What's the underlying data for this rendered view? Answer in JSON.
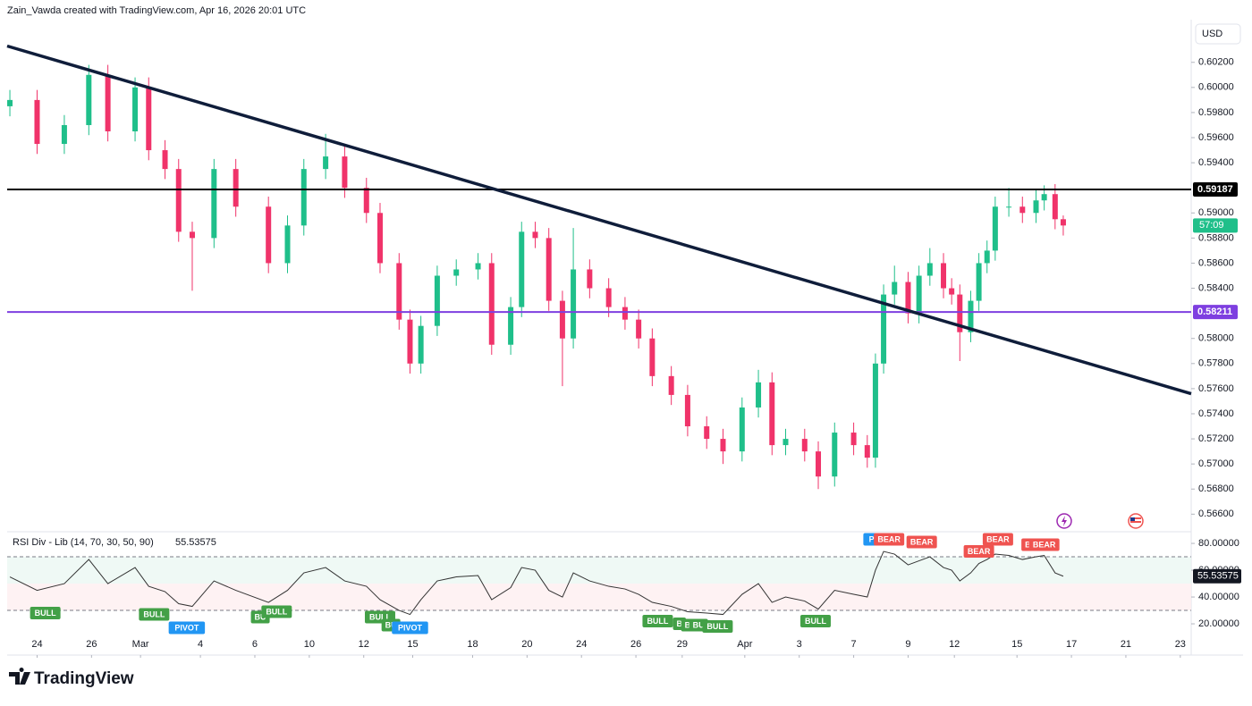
{
  "header": "Zain_Vawda created with TradingView.com, Apr 16, 2026 20:01 UTC",
  "footer": "TradingView",
  "chart_data": {
    "type": "candlestick",
    "currency": "USD",
    "up_color": "#1fbf8a",
    "down_color": "#f0336a",
    "xlim": [
      -1.1,
      42.4
    ],
    "xticks": [
      {
        "value": 0,
        "label": "24"
      },
      {
        "value": 2,
        "label": "26"
      },
      {
        "value": 3.8,
        "label": "Mar"
      },
      {
        "value": 6,
        "label": "4"
      },
      {
        "value": 8,
        "label": "6"
      },
      {
        "value": 10,
        "label": "10"
      },
      {
        "value": 12,
        "label": "12"
      },
      {
        "value": 13.8,
        "label": "15"
      },
      {
        "value": 16,
        "label": "18"
      },
      {
        "value": 18,
        "label": "20"
      },
      {
        "value": 20,
        "label": "24"
      },
      {
        "value": 22,
        "label": "26"
      },
      {
        "value": 23.7,
        "label": "29"
      },
      {
        "value": 26,
        "label": "Apr"
      },
      {
        "value": 28,
        "label": "3"
      },
      {
        "value": 30,
        "label": "7"
      },
      {
        "value": 32,
        "label": "9"
      },
      {
        "value": 33.7,
        "label": "12"
      },
      {
        "value": 36,
        "label": "15"
      },
      {
        "value": 38,
        "label": "17"
      },
      {
        "value": 40,
        "label": "21"
      },
      {
        "value": 42,
        "label": "23"
      }
    ],
    "ylim": [
      0.5646,
      0.6054
    ],
    "yticks": [
      {
        "value": 0.602,
        "label": "0.60200"
      },
      {
        "value": 0.6,
        "label": "0.60000"
      },
      {
        "value": 0.598,
        "label": "0.59800"
      },
      {
        "value": 0.596,
        "label": "0.59600"
      },
      {
        "value": 0.594,
        "label": "0.59400"
      },
      {
        "value": 0.59,
        "label": "0.59000"
      },
      {
        "value": 0.588,
        "label": "0.58800"
      },
      {
        "value": 0.586,
        "label": "0.58600"
      },
      {
        "value": 0.584,
        "label": "0.58400"
      },
      {
        "value": 0.58,
        "label": "0.58000"
      },
      {
        "value": 0.578,
        "label": "0.57800"
      },
      {
        "value": 0.576,
        "label": "0.57600"
      },
      {
        "value": 0.574,
        "label": "0.57400"
      },
      {
        "value": 0.572,
        "label": "0.57200"
      },
      {
        "value": 0.57,
        "label": "0.57000"
      },
      {
        "value": 0.568,
        "label": "0.56800"
      },
      {
        "value": 0.566,
        "label": "0.56600"
      }
    ],
    "x": [
      -1.0,
      0,
      1.0,
      1.9,
      2.6,
      3.6,
      4.1,
      4.7,
      5.2,
      5.7,
      6.5,
      7.3,
      8.5,
      9.2,
      9.8,
      10.6,
      11.3,
      12.1,
      12.6,
      13.3,
      13.7,
      14.1,
      14.7,
      15.4,
      16.2,
      16.7,
      17.4,
      17.8,
      18.3,
      18.8,
      19.3,
      19.7,
      20.3,
      21.0,
      21.6,
      22.1,
      22.6,
      23.3,
      23.9,
      24.6,
      25.2,
      25.9,
      26.5,
      27.0,
      27.5,
      28.2,
      28.7,
      29.3,
      30.0,
      30.5,
      30.8,
      31.1,
      31.5,
      32.0,
      32.4,
      32.8,
      33.3,
      33.6,
      33.9,
      34.3,
      34.6,
      34.9,
      35.2,
      35.7,
      36.2,
      36.7,
      37.0,
      37.4,
      37.7
    ],
    "open": [
      0.5985,
      0.599,
      0.5955,
      0.597,
      0.601,
      0.5965,
      0.6,
      0.595,
      0.5935,
      0.5885,
      0.588,
      0.5935,
      0.5905,
      0.586,
      0.589,
      0.5935,
      0.5945,
      0.592,
      0.59,
      0.586,
      0.5815,
      0.578,
      0.581,
      0.585,
      0.5855,
      0.586,
      0.5795,
      0.5825,
      0.5885,
      0.588,
      0.583,
      0.58,
      0.5855,
      0.584,
      0.5825,
      0.5815,
      0.58,
      0.577,
      0.5755,
      0.573,
      0.572,
      0.571,
      0.5745,
      0.5765,
      0.5715,
      0.572,
      0.571,
      0.569,
      0.5725,
      0.5715,
      0.5705,
      0.578,
      0.5835,
      0.5845,
      0.582,
      0.585,
      0.586,
      0.584,
      0.5835,
      0.5805,
      0.583,
      0.586,
      0.587,
      0.5905,
      0.5905,
      0.59,
      0.591,
      0.5915,
      0.5895
    ],
    "high": [
      0.5998,
      0.5998,
      0.5978,
      0.6018,
      0.6018,
      0.6008,
      0.6008,
      0.5958,
      0.5943,
      0.5893,
      0.5943,
      0.5943,
      0.5913,
      0.5898,
      0.5943,
      0.5963,
      0.5953,
      0.5928,
      0.5908,
      0.5868,
      0.5823,
      0.5818,
      0.5858,
      0.5863,
      0.5868,
      0.5868,
      0.5833,
      0.5893,
      0.5893,
      0.5888,
      0.5838,
      0.5888,
      0.5863,
      0.5848,
      0.5833,
      0.5823,
      0.5808,
      0.5778,
      0.5763,
      0.5738,
      0.5728,
      0.5753,
      0.5775,
      0.5773,
      0.5728,
      0.5728,
      0.5718,
      0.5733,
      0.5733,
      0.5723,
      0.5788,
      0.5843,
      0.5858,
      0.5853,
      0.5858,
      0.5872,
      0.5868,
      0.5848,
      0.5843,
      0.5838,
      0.5868,
      0.5878,
      0.5913,
      0.592,
      0.5913,
      0.5918,
      0.5922,
      0.5923,
      0.5898
    ],
    "low": [
      0.5977,
      0.5947,
      0.5947,
      0.5962,
      0.5957,
      0.5957,
      0.5942,
      0.5927,
      0.5877,
      0.5838,
      0.5872,
      0.5897,
      0.5852,
      0.5852,
      0.5882,
      0.5927,
      0.5912,
      0.5892,
      0.5852,
      0.5807,
      0.5772,
      0.5772,
      0.5802,
      0.5842,
      0.5847,
      0.5787,
      0.5787,
      0.5817,
      0.5872,
      0.5822,
      0.5762,
      0.5792,
      0.5832,
      0.5817,
      0.5807,
      0.5792,
      0.5762,
      0.5747,
      0.5722,
      0.5712,
      0.57,
      0.5702,
      0.5737,
      0.5707,
      0.5707,
      0.5702,
      0.568,
      0.5682,
      0.5707,
      0.5697,
      0.5697,
      0.5772,
      0.5827,
      0.5812,
      0.5812,
      0.5842,
      0.5832,
      0.5827,
      0.5782,
      0.5797,
      0.5822,
      0.5852,
      0.5862,
      0.5897,
      0.5892,
      0.5892,
      0.5902,
      0.5887,
      0.5882
    ],
    "close": [
      0.599,
      0.5955,
      0.597,
      0.601,
      0.5965,
      0.6,
      0.595,
      0.5935,
      0.5885,
      0.588,
      0.5935,
      0.5905,
      0.586,
      0.589,
      0.5935,
      0.5945,
      0.592,
      0.59,
      0.586,
      0.5815,
      0.578,
      0.581,
      0.585,
      0.5855,
      0.586,
      0.5795,
      0.5825,
      0.5885,
      0.588,
      0.583,
      0.58,
      0.5855,
      0.584,
      0.5825,
      0.5815,
      0.58,
      0.577,
      0.5755,
      0.573,
      0.572,
      0.571,
      0.5745,
      0.5765,
      0.5715,
      0.572,
      0.571,
      0.569,
      0.5725,
      0.5715,
      0.5705,
      0.578,
      0.5835,
      0.5845,
      0.582,
      0.585,
      0.586,
      0.584,
      0.5835,
      0.5805,
      0.583,
      0.586,
      0.587,
      0.5905,
      0.5905,
      0.59,
      0.591,
      0.5915,
      0.5895,
      0.589
    ],
    "countdown": "57:09",
    "trendline": {
      "x": [
        -1.1,
        42.4
      ],
      "y": [
        0.6033,
        0.5756
      ],
      "color": "#0f1d3a"
    },
    "levels": [
      {
        "value": 0.59187,
        "label": "0.59187",
        "color": "#000000"
      },
      {
        "value": 0.58211,
        "label": "0.58211",
        "color": "#7e3fe0"
      }
    ],
    "rsi": {
      "title": "RSI Div - Lib (14, 70, 30, 50, 90)",
      "last_label": "55.53575",
      "ylim": [
        -3.3,
        88.7
      ],
      "yticks": [
        {
          "value": 80,
          "label": "80.00000"
        },
        {
          "value": 60,
          "label": "60.00000"
        },
        {
          "value": 40,
          "label": "40.00000"
        },
        {
          "value": 20,
          "label": "20.00000"
        }
      ],
      "overbought": 70,
      "midline": 50,
      "oversold": 30,
      "values": [
        55,
        45,
        50,
        68,
        50,
        62,
        48,
        44,
        35,
        33,
        52,
        45,
        36,
        45,
        58,
        62,
        52,
        48,
        38,
        30,
        27,
        38,
        52,
        55,
        56,
        38,
        47,
        62,
        60,
        45,
        40,
        58,
        52,
        48,
        46,
        42,
        36,
        33,
        29,
        28,
        27,
        42,
        50,
        36,
        40,
        37,
        31,
        45,
        42,
        40,
        60,
        74,
        72,
        64,
        67,
        70,
        62,
        60,
        52,
        58,
        65,
        68,
        72,
        71,
        68,
        70,
        71,
        58,
        55.53575
      ],
      "signals": [
        {
          "label": "BULL",
          "x": 0.3,
          "y": 28,
          "color": "#43a047"
        },
        {
          "label": "BULL",
          "x": 4.3,
          "y": 27,
          "color": "#43a047"
        },
        {
          "label": "PIVOT",
          "x": 5.5,
          "y": 17,
          "color": "#2196f3"
        },
        {
          "label": "BU",
          "x": 8.2,
          "y": 25,
          "color": "#43a047"
        },
        {
          "label": "BULL",
          "x": 8.8,
          "y": 29,
          "color": "#43a047"
        },
        {
          "label": "BULL",
          "x": 12.6,
          "y": 25,
          "color": "#43a047"
        },
        {
          "label": "BU",
          "x": 13.0,
          "y": 19,
          "color": "#43a047"
        },
        {
          "label": "PIVOT",
          "x": 13.7,
          "y": 17,
          "color": "#2196f3"
        },
        {
          "label": "BULL",
          "x": 22.8,
          "y": 22,
          "color": "#43a047"
        },
        {
          "label": "B",
          "x": 23.6,
          "y": 20,
          "color": "#43a047"
        },
        {
          "label": "B",
          "x": 23.9,
          "y": 19,
          "color": "#43a047"
        },
        {
          "label": "BU",
          "x": 24.3,
          "y": 19,
          "color": "#43a047"
        },
        {
          "label": "BULL",
          "x": 25.0,
          "y": 18,
          "color": "#43a047"
        },
        {
          "label": "BULL",
          "x": 28.6,
          "y": 22,
          "color": "#43a047"
        },
        {
          "label": "PI",
          "x": 30.7,
          "y": 83,
          "color": "#2196f3"
        },
        {
          "label": "BEAR",
          "x": 31.3,
          "y": 83,
          "color": "#ef5350"
        },
        {
          "label": "BEAR",
          "x": 32.5,
          "y": 81,
          "color": "#ef5350"
        },
        {
          "label": "BEAR",
          "x": 34.6,
          "y": 74,
          "color": "#ef5350"
        },
        {
          "label": "BEAR",
          "x": 35.3,
          "y": 83,
          "color": "#ef5350"
        },
        {
          "label": "B",
          "x": 36.4,
          "y": 79,
          "color": "#ef5350"
        },
        {
          "label": "BEAR",
          "x": 37.0,
          "y": 79,
          "color": "#ef5350"
        }
      ]
    }
  }
}
